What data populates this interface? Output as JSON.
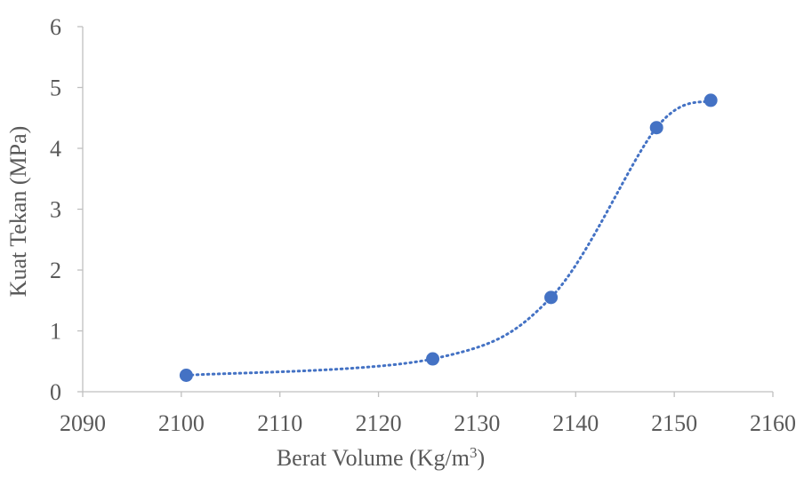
{
  "chart_data": {
    "type": "scatter",
    "title": "",
    "xlabel_main": "Berat Volume (Kg/m",
    "xlabel_sup": "3",
    "xlabel_end": ")",
    "ylabel": "Kuat Tekan (MPa)",
    "xlim": [
      2090,
      2160
    ],
    "ylim": [
      0,
      6
    ],
    "x_ticks": [
      2090,
      2100,
      2110,
      2120,
      2130,
      2140,
      2150,
      2160
    ],
    "y_ticks": [
      0,
      1,
      2,
      3,
      4,
      5,
      6
    ],
    "grid": false,
    "legend": "none",
    "series": [
      {
        "x": [
          2100.5,
          2125.5,
          2137.5,
          2148.2,
          2153.7
        ],
        "y": [
          0.27,
          0.54,
          1.55,
          4.34,
          4.79
        ],
        "color": "#4472c4",
        "trendline": "dotted smooth"
      }
    ]
  }
}
